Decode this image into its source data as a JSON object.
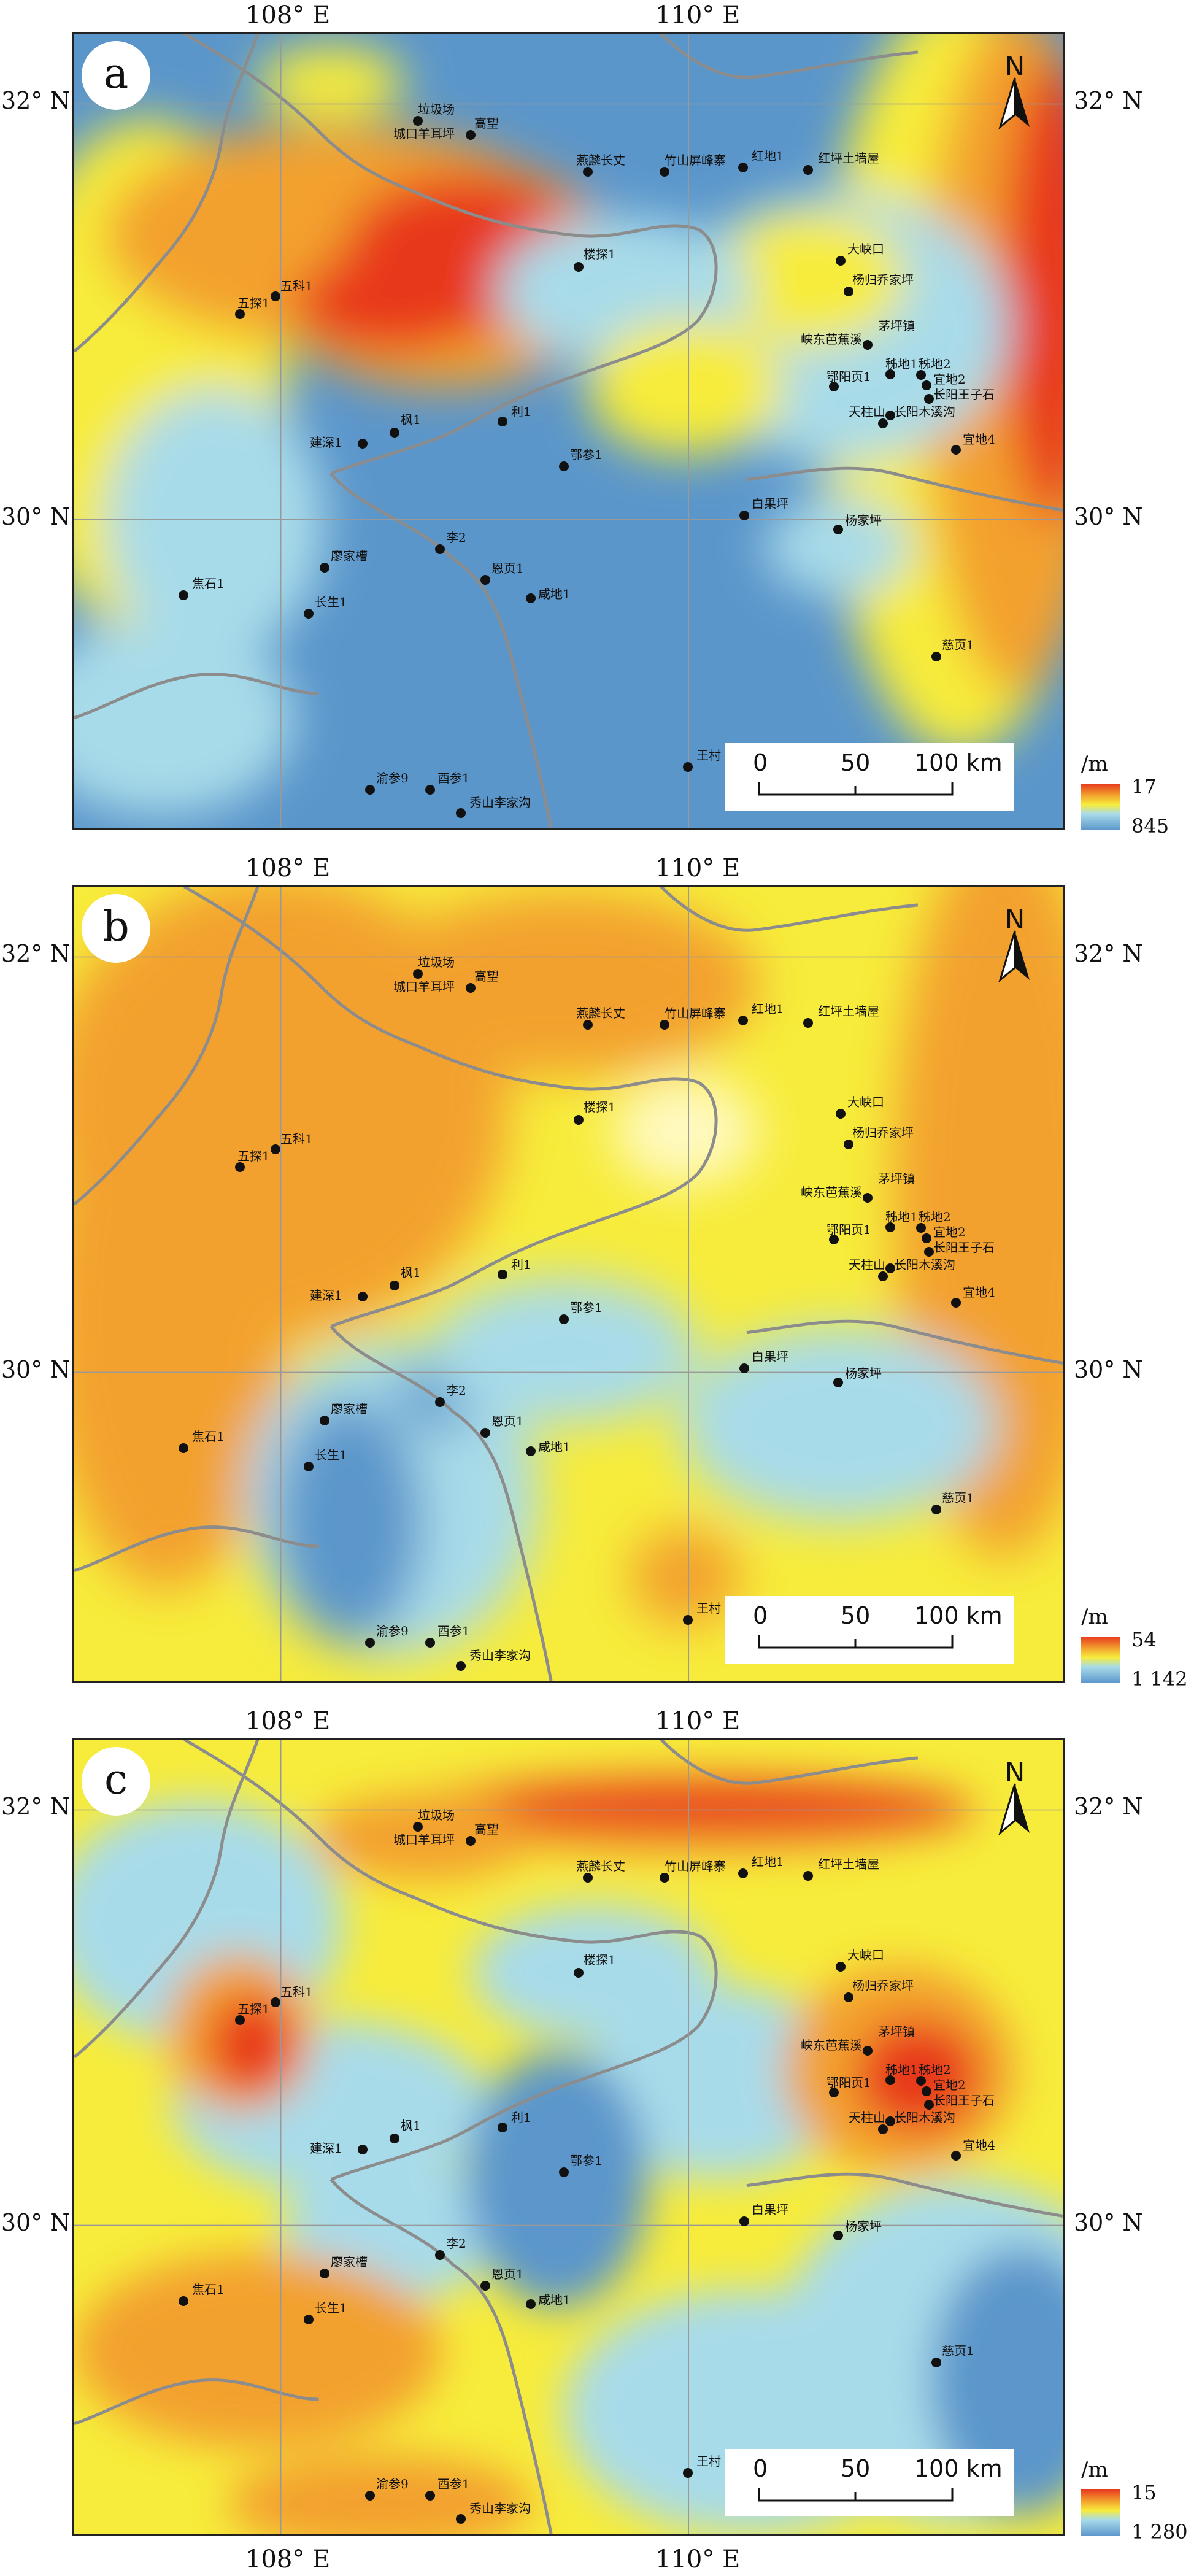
{
  "axes": {
    "x_labels": [
      "108° E",
      "110° E"
    ],
    "y_labels": [
      "32° N",
      "30° N"
    ]
  },
  "north_label": "N",
  "scale_bar": {
    "labels": [
      "0",
      "50",
      "100 km"
    ]
  },
  "panels": [
    {
      "letter": "a",
      "unit": "/m",
      "legend_max": "17",
      "legend_min": "845"
    },
    {
      "letter": "b",
      "unit": "/m",
      "legend_max": "54",
      "legend_min": "1 142"
    },
    {
      "letter": "c",
      "unit": "/m",
      "legend_max": "15",
      "legend_min": "1 280"
    }
  ],
  "sites": [
    "垃圾场",
    "城口羊耳坪",
    "高望",
    "燕麟长丈",
    "竹山屏峰寨",
    "红地1",
    "红坪土墙屋",
    "楼探1",
    "大峡口",
    "杨归乔家坪",
    "茅坪镇",
    "峡东芭蕉溪",
    "秭地1",
    "秭地2",
    "鄂阳页1",
    "宜地2",
    "长阳王子石",
    "天柱山",
    "长阳木溪沟",
    "宜地4",
    "五科1",
    "五探1",
    "建深1",
    "枫1",
    "利1",
    "鄂参1",
    "白果坪",
    "杨家坪",
    "李2",
    "廖家槽",
    "恩页1",
    "咸地1",
    "焦石1",
    "长生1",
    "慈页1",
    "王村",
    "渝参9",
    "酉参1",
    "秀山李家沟"
  ],
  "colors": {
    "high": "#e8391e",
    "orange": "#f3a12e",
    "yellow": "#f7ec3b",
    "light_blue": "#a8dbe9",
    "blue": "#5b96cb",
    "boundary": "#8c8c8c"
  }
}
